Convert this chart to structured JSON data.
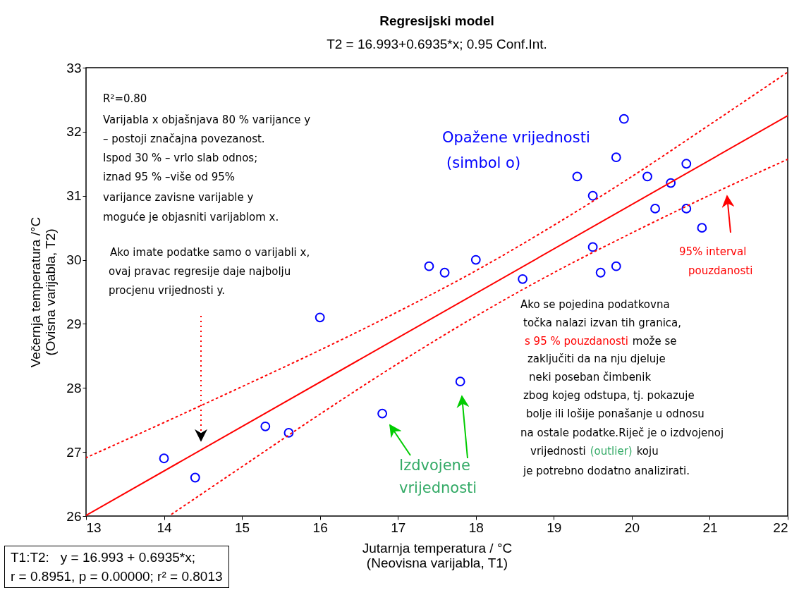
{
  "chart_data": {
    "type": "scatter",
    "title": "Regresijski model",
    "subtitle": "T2 = 16.993+0.6935*x; 0.95 Conf.Int.",
    "xlabel": "Jutarnja temperatura / °C\n(Neovisna varijabla, T1)",
    "ylabel": "Večernja temperatura /°C\n(Ovisna varijabla, T2)",
    "xlim": [
      13,
      22
    ],
    "ylim": [
      26,
      33
    ],
    "xticks": [
      13,
      14,
      15,
      16,
      17,
      18,
      19,
      20,
      21,
      22
    ],
    "yticks": [
      26,
      27,
      28,
      29,
      30,
      31,
      32,
      33
    ],
    "grid": false,
    "series": [
      {
        "color": "#0000ff",
        "marker": "circle",
        "x": [
          14.0,
          14.4,
          15.3,
          15.6,
          16.0,
          16.8,
          17.4,
          17.6,
          17.8,
          18.0,
          18.6,
          19.3,
          19.5,
          19.5,
          19.6,
          19.8,
          19.8,
          19.9,
          20.2,
          20.3,
          20.5,
          20.7,
          20.7,
          20.9
        ],
        "values": [
          26.9,
          26.6,
          27.4,
          27.3,
          29.1,
          27.6,
          29.9,
          29.8,
          28.1,
          30.0,
          29.7,
          31.3,
          31.0,
          30.2,
          29.8,
          31.6,
          29.9,
          32.2,
          31.3,
          30.8,
          31.2,
          31.5,
          30.8,
          30.5
        ]
      },
      {
        "type": "line",
        "color": "#ff0000",
        "line_style": "solid",
        "x": [
          13,
          22
        ],
        "values": [
          26.01,
          32.25
        ]
      },
      {
        "type": "line",
        "color": "#ff0000",
        "line_style": "dotted",
        "x": [
          13,
          14,
          15,
          16,
          17,
          18,
          19,
          20,
          21,
          22
        ],
        "values": [
          26.91,
          27.46,
          28.02,
          28.59,
          29.19,
          29.83,
          30.54,
          31.3,
          32.11,
          32.93
        ]
      },
      {
        "type": "line",
        "color": "#ff0000",
        "line_style": "dotted",
        "x": [
          14.1,
          15,
          16,
          17,
          18,
          19,
          20,
          21,
          22
        ],
        "values": [
          26.03,
          26.77,
          27.59,
          28.38,
          29.12,
          29.8,
          30.42,
          31.01,
          31.57
        ]
      }
    ],
    "annotations": [
      "R²=0.80",
      "Varijabla x objašnjava 80 % varijance y",
      "– postoji značajna povezanost.",
      " Ispod 30 % – vrlo slab odnos;",
      "iznad 95 % –više od 95%",
      "varijance zavisne varijable y",
      " moguće je objasniti varijablom x.",
      "Ako imate podatke samo o varijabli x,",
      "ovaj pravac regresije daje najbolju",
      "procjenu vrijednosti y.",
      "Opažene vrijednosti",
      "(simbol o)",
      "95% interval",
      "pouzdanosti",
      "Ako se pojedina podatkovna",
      "točka nalazi izvan tih granica,",
      "s 95 % pouzdanosti",
      "može se",
      "zaključiti da na nju djeluje",
      "neki poseban čimbenik",
      "zbog kojeg odstupa, tj. pokazuje",
      "bolje ili lošije ponašanje u odnosu",
      "na ostale podatke.Riječ je o izdvojenoj",
      "vrijednosti",
      "(outlier)",
      "koju",
      "je potrebno dodatno analizirati.",
      "Izdvojene",
      "vrijednosti",
      "T1:T2:   y = 16.993 + 0.6935*x;",
      "r = 0.8951, p = 0.00000; r² = 0.8013"
    ]
  }
}
